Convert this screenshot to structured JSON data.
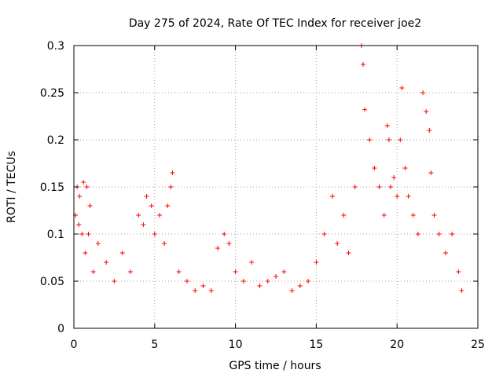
{
  "chart_data": {
    "type": "scatter",
    "title": "Day 275 of 2024, Rate Of TEC Index for receiver joe2",
    "xlabel": "GPS time / hours",
    "ylabel": "ROTI / TECUs",
    "xlim": [
      0,
      25
    ],
    "ylim": [
      0,
      0.3
    ],
    "x_ticks": [
      "0",
      "5",
      "10",
      "15",
      "20",
      "25"
    ],
    "y_ticks": [
      "0",
      "0.05",
      "0.1",
      "0.15",
      "0.2",
      "0.25",
      "0.3"
    ],
    "grid": true,
    "marker": "+",
    "color": "#ff0000",
    "series": [
      {
        "x": [
          0.1,
          0.2,
          0.3,
          0.35,
          0.5,
          0.6,
          0.7,
          0.8,
          0.9,
          1.0,
          1.2,
          1.5,
          2.0,
          2.5,
          3.0,
          3.5,
          4.0,
          4.3,
          4.5,
          4.8,
          5.0,
          5.3,
          5.6,
          5.8,
          6.0,
          6.1,
          6.5,
          7.0,
          7.5,
          8.0,
          8.5,
          8.9,
          9.3,
          9.6,
          10.0,
          10.5,
          11.0,
          11.5,
          12.0,
          12.5,
          13.0,
          13.5,
          14.0,
          14.5,
          15.0,
          15.5,
          16.0,
          16.3,
          16.7,
          17.0,
          17.4,
          17.8,
          17.9,
          18.0,
          18.3,
          18.6,
          18.9,
          19.2,
          19.4,
          19.5,
          19.6,
          19.8,
          20.0,
          20.2,
          20.3,
          20.5,
          20.7,
          21.0,
          21.3,
          21.6,
          21.8,
          22.0,
          22.1,
          22.3,
          22.6,
          23.0,
          23.4,
          23.8,
          24.0
        ],
        "y": [
          0.12,
          0.15,
          0.11,
          0.14,
          0.1,
          0.155,
          0.08,
          0.15,
          0.1,
          0.13,
          0.06,
          0.09,
          0.07,
          0.05,
          0.08,
          0.06,
          0.12,
          0.11,
          0.14,
          0.13,
          0.1,
          0.12,
          0.09,
          0.13,
          0.15,
          0.165,
          0.06,
          0.05,
          0.04,
          0.045,
          0.04,
          0.085,
          0.1,
          0.09,
          0.06,
          0.05,
          0.07,
          0.045,
          0.05,
          0.055,
          0.06,
          0.04,
          0.045,
          0.05,
          0.07,
          0.1,
          0.14,
          0.09,
          0.12,
          0.08,
          0.15,
          0.3,
          0.28,
          0.232,
          0.2,
          0.17,
          0.15,
          0.12,
          0.215,
          0.2,
          0.15,
          0.16,
          0.14,
          0.2,
          0.255,
          0.17,
          0.14,
          0.12,
          0.1,
          0.25,
          0.23,
          0.21,
          0.165,
          0.12,
          0.1,
          0.08,
          0.1,
          0.06,
          0.04
        ]
      }
    ]
  }
}
